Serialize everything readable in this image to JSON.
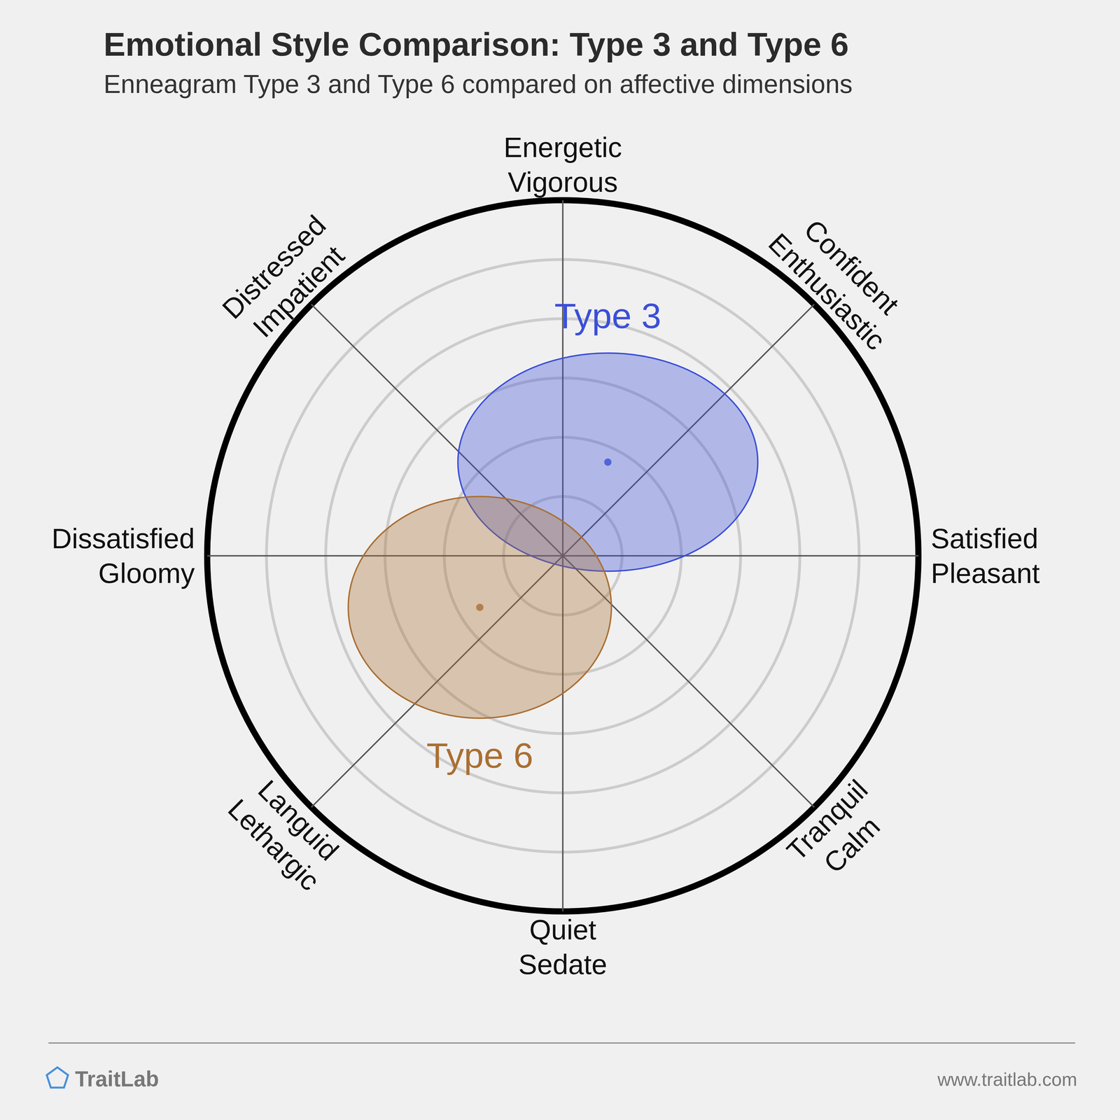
{
  "chart_data": {
    "type": "circumplex",
    "title": "Emotional Style Comparison: Type 3 and Type 6",
    "subtitle": "Enneagram Type 3 and Type 6 compared on affective dimensions",
    "xlim": [
      -6,
      6
    ],
    "ylim": [
      -6,
      6
    ],
    "rings": [
      1,
      2,
      3,
      4,
      5,
      6
    ],
    "tick_labels": false,
    "directions": [
      [
        "Energetic",
        "Vigorous"
      ],
      [
        "Confident",
        "Enthusiastic"
      ],
      [
        "Satisfied",
        "Pleasant"
      ],
      [
        "Tranquil",
        "Calm"
      ],
      [
        "Quiet",
        "Sedate"
      ],
      [
        "Languid",
        "Lethargic"
      ],
      [
        "Dissatisfied",
        "Gloomy"
      ],
      [
        "Distressed",
        "Impatient"
      ]
    ],
    "series": [
      {
        "name": "Type 3",
        "color": "#3b4fd8",
        "x": 0.76,
        "y": 1.58,
        "x_spread": 2.53,
        "y_spread": 1.84
      },
      {
        "name": "Type 6",
        "color": "#aa6f33",
        "x": -1.4,
        "y": -0.87,
        "x_spread": 2.22,
        "y_spread": 1.87
      }
    ],
    "footer": {
      "brand": "TraitLab",
      "url": "www.traitlab.com"
    }
  }
}
